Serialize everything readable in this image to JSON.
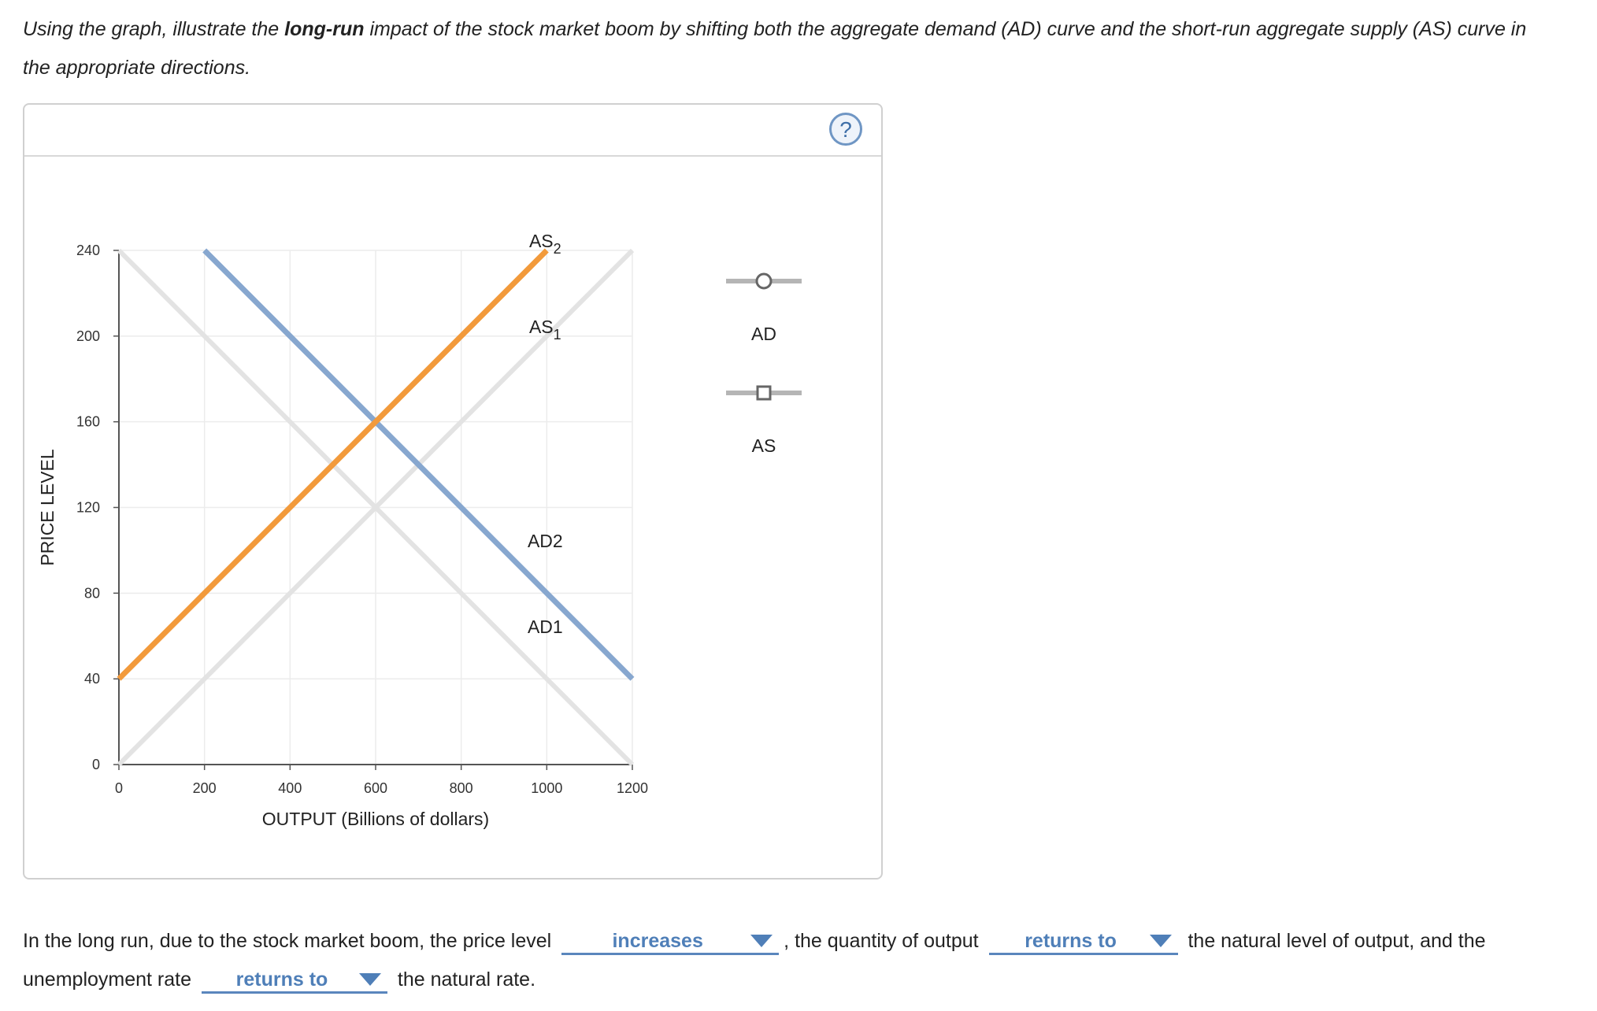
{
  "question": {
    "part1": "Using the graph, illustrate the ",
    "bold": "long-run",
    "part2": " impact of the stock market boom by shifting both the aggregate demand (AD) curve and the short-run aggregate supply (AS) curve in the appropriate directions."
  },
  "help_icon": "question-mark-icon",
  "help_symbol": "?",
  "chart_data": {
    "type": "line",
    "xlabel": "OUTPUT (Billions of dollars)",
    "ylabel": "PRICE LEVEL",
    "xlim": [
      0,
      1200
    ],
    "ylim": [
      0,
      240
    ],
    "x_ticks": [
      0,
      200,
      400,
      600,
      800,
      1000,
      1200
    ],
    "y_ticks": [
      0,
      40,
      80,
      120,
      160,
      200,
      240
    ],
    "grid": true,
    "series": [
      {
        "name": "AD1",
        "style": "inactive",
        "color": "#e3e3e3",
        "points": [
          [
            0,
            240
          ],
          [
            1200,
            0
          ]
        ]
      },
      {
        "name": "AS1",
        "style": "inactive",
        "color": "#e3e3e3",
        "points": [
          [
            0,
            0
          ],
          [
            1200,
            240
          ]
        ]
      },
      {
        "name": "AD2",
        "style": "active",
        "color": "#87a7cf",
        "points": [
          [
            200,
            240
          ],
          [
            1200,
            40
          ]
        ]
      },
      {
        "name": "AS2",
        "style": "active",
        "color": "#f29a3b",
        "points": [
          [
            0,
            40
          ],
          [
            1000,
            240
          ]
        ]
      }
    ],
    "curve_labels": [
      {
        "name": "AS2",
        "main": "AS",
        "sub": "2",
        "at": [
          1000,
          240
        ]
      },
      {
        "name": "AS1",
        "main": "AS",
        "sub": "1",
        "at": [
          1000,
          200
        ]
      },
      {
        "name": "AD2",
        "main": "AD2",
        "sub": "",
        "at": [
          1000,
          100
        ]
      },
      {
        "name": "AD1",
        "main": "AD1",
        "sub": "",
        "at": [
          1000,
          60
        ]
      }
    ],
    "legend": {
      "placement": "right",
      "items": [
        {
          "label": "AD",
          "marker": "circle",
          "color": "#b5b5b5"
        },
        {
          "label": "AS",
          "marker": "square",
          "color": "#b5b5b5"
        }
      ]
    }
  },
  "answer": {
    "s1": "In the long run, due to the stock market boom, the price level",
    "dd1": "increases",
    "s2": ", the quantity of output",
    "dd2": "returns to",
    "s3": "the natural level of output, and the unemployment rate",
    "dd3": "returns to",
    "s4": "the natural rate."
  }
}
